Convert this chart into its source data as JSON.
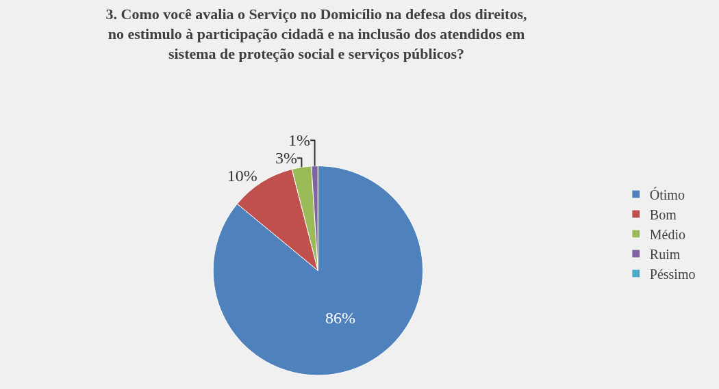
{
  "chart_data": {
    "type": "pie",
    "title": "3. Como você avalia o Serviço no Domicílio na defesa dos direitos, no estimulo à participação cidadã e na inclusão dos atendidos em sistema de proteção social e serviços públicos?",
    "categories": [
      "Ótimo",
      "Bom",
      "Médio",
      "Ruim",
      "Péssimo"
    ],
    "values": [
      86,
      10,
      3,
      1,
      0
    ],
    "colors": [
      "#4f81bd",
      "#c0504d",
      "#9bbb59",
      "#8064a2",
      "#4bacc6"
    ],
    "value_labels": [
      "86%",
      "10%",
      "3%",
      "1%",
      null
    ],
    "legend": "right"
  }
}
